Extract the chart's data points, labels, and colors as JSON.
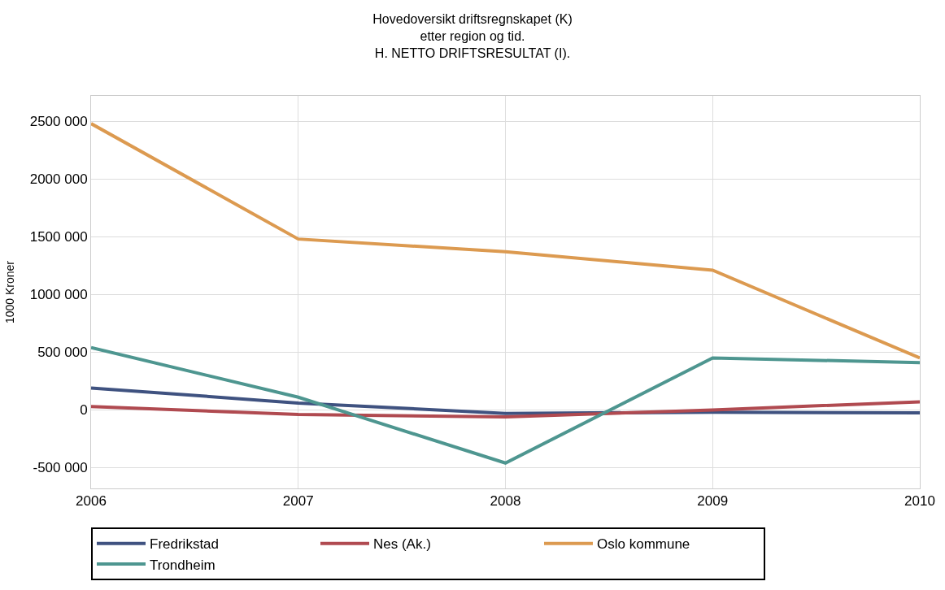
{
  "chart_data": {
    "type": "line",
    "title": "Hovedoversikt driftsregnskapet (K)\netter region og tid.\nH. NETTO DRIFTSRESULTAT (I).",
    "ylabel": "1000 Kroner",
    "x": [
      2006,
      2007,
      2008,
      2009,
      2010
    ],
    "xlim": [
      2006,
      2010
    ],
    "xticks": [
      2006,
      2007,
      2008,
      2009,
      2010
    ],
    "ylim": [
      -680000,
      2720000
    ],
    "yticks": [
      {
        "value": -500000,
        "label": "-500 000"
      },
      0,
      {
        "value": 500000,
        "label": "500 000"
      },
      {
        "value": 1000000,
        "label": "1000 000"
      },
      {
        "value": 1500000,
        "label": "1500 000"
      },
      {
        "value": 2000000,
        "label": "2000 000"
      },
      {
        "value": 2500000,
        "label": "2500 000"
      }
    ],
    "series": [
      {
        "name": "Fredrikstad",
        "color": "#3f5280",
        "values": [
          190000,
          60000,
          -30000,
          -20000,
          -25000
        ]
      },
      {
        "name": "Nes (Ak.)",
        "color": "#b04a50",
        "values": [
          30000,
          -40000,
          -60000,
          0,
          70000
        ]
      },
      {
        "name": "Oslo kommune",
        "color": "#dc9a50",
        "values": [
          2480000,
          1480000,
          1370000,
          1210000,
          450000
        ]
      },
      {
        "name": "Trondheim",
        "color": "#4e9690",
        "values": [
          540000,
          110000,
          -460000,
          450000,
          410000
        ]
      }
    ],
    "grid": true,
    "legend": "bottom",
    "marker": "none",
    "line_style": "solid"
  }
}
